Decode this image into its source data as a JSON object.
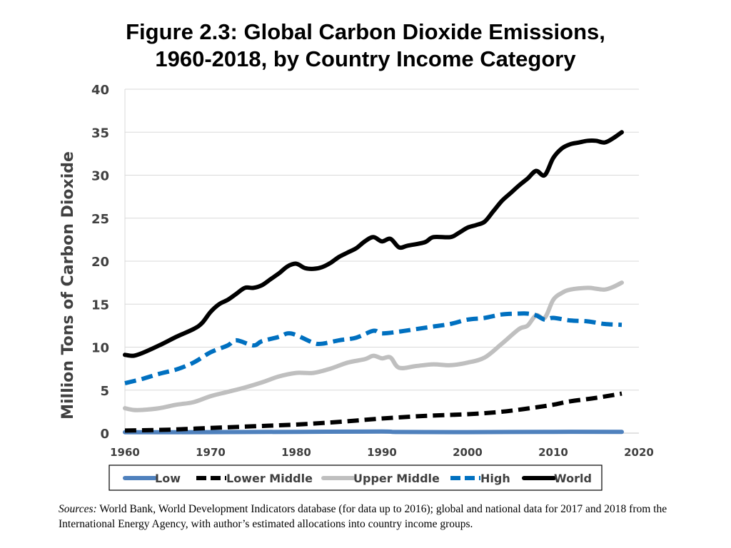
{
  "title_line1": "Figure 2.3: Global Carbon Dioxide Emissions,",
  "title_line2": "1960-2018, by Country Income Category",
  "sources_label": "Sources:",
  "sources_text": "World Bank, World Development Indicators database (for data up to 2016); global and national data for 2017 and 2018 from the International Energy Agency, with author’s estimated allocations into country income groups.",
  "chart_data": {
    "type": "line",
    "title": "Figure 2.3: Global Carbon Dioxide Emissions, 1960-2018, by Country Income Category",
    "xlabel": "",
    "ylabel": "Million Tons of Carbon Dioxide",
    "xlim": [
      1960,
      2020
    ],
    "ylim": [
      0,
      40
    ],
    "xticks": [
      1960,
      1970,
      1980,
      1990,
      2000,
      2010,
      2020
    ],
    "yticks": [
      0,
      5,
      10,
      15,
      20,
      25,
      30,
      35,
      40
    ],
    "grid": true,
    "legend_position": "bottom",
    "series": [
      {
        "name": "Low",
        "color": "#4F81BD",
        "dash": "solid",
        "points": [
          [
            1960,
            0.1
          ],
          [
            1970,
            0.12
          ],
          [
            1980,
            0.15
          ],
          [
            1990,
            0.18
          ],
          [
            1992,
            0.13
          ],
          [
            2000,
            0.12
          ],
          [
            2010,
            0.15
          ],
          [
            2018,
            0.15
          ]
        ]
      },
      {
        "name": "Lower Middle",
        "color": "#000000",
        "dash": "dashed",
        "points": [
          [
            1960,
            0.3
          ],
          [
            1965,
            0.4
          ],
          [
            1970,
            0.6
          ],
          [
            1975,
            0.8
          ],
          [
            1980,
            1.0
          ],
          [
            1985,
            1.3
          ],
          [
            1990,
            1.7
          ],
          [
            1995,
            2.0
          ],
          [
            2000,
            2.2
          ],
          [
            2003,
            2.4
          ],
          [
            2005,
            2.6
          ],
          [
            2008,
            3.0
          ],
          [
            2010,
            3.3
          ],
          [
            2012,
            3.7
          ],
          [
            2015,
            4.1
          ],
          [
            2018,
            4.6
          ]
        ]
      },
      {
        "name": "Upper Middle",
        "color": "#BFBFBF",
        "dash": "solid",
        "points": [
          [
            1960,
            2.9
          ],
          [
            1961,
            2.7
          ],
          [
            1962,
            2.7
          ],
          [
            1964,
            2.9
          ],
          [
            1966,
            3.3
          ],
          [
            1968,
            3.6
          ],
          [
            1970,
            4.3
          ],
          [
            1972,
            4.8
          ],
          [
            1974,
            5.3
          ],
          [
            1976,
            5.9
          ],
          [
            1978,
            6.6
          ],
          [
            1980,
            7.0
          ],
          [
            1982,
            7.0
          ],
          [
            1984,
            7.5
          ],
          [
            1986,
            8.2
          ],
          [
            1988,
            8.6
          ],
          [
            1989,
            9.0
          ],
          [
            1990,
            8.7
          ],
          [
            1991,
            8.8
          ],
          [
            1992,
            7.6
          ],
          [
            1994,
            7.8
          ],
          [
            1996,
            8.0
          ],
          [
            1998,
            7.9
          ],
          [
            2000,
            8.2
          ],
          [
            2002,
            8.8
          ],
          [
            2004,
            10.4
          ],
          [
            2006,
            12.1
          ],
          [
            2007,
            12.5
          ],
          [
            2008,
            13.7
          ],
          [
            2009,
            13.4
          ],
          [
            2010,
            15.5
          ],
          [
            2011,
            16.3
          ],
          [
            2012,
            16.7
          ],
          [
            2014,
            16.9
          ],
          [
            2015,
            16.8
          ],
          [
            2016,
            16.7
          ],
          [
            2017,
            17.0
          ],
          [
            2018,
            17.5
          ]
        ]
      },
      {
        "name": "High",
        "color": "#0070C0",
        "dash": "dashed",
        "points": [
          [
            1960,
            5.8
          ],
          [
            1962,
            6.3
          ],
          [
            1964,
            6.9
          ],
          [
            1966,
            7.4
          ],
          [
            1968,
            8.2
          ],
          [
            1970,
            9.4
          ],
          [
            1972,
            10.2
          ],
          [
            1973,
            10.8
          ],
          [
            1975,
            10.2
          ],
          [
            1976,
            10.7
          ],
          [
            1978,
            11.2
          ],
          [
            1979,
            11.6
          ],
          [
            1980,
            11.4
          ],
          [
            1982,
            10.5
          ],
          [
            1983,
            10.4
          ],
          [
            1985,
            10.8
          ],
          [
            1987,
            11.1
          ],
          [
            1989,
            11.9
          ],
          [
            1990,
            11.6
          ],
          [
            1992,
            11.8
          ],
          [
            1994,
            12.1
          ],
          [
            1996,
            12.4
          ],
          [
            1998,
            12.7
          ],
          [
            2000,
            13.2
          ],
          [
            2002,
            13.4
          ],
          [
            2004,
            13.8
          ],
          [
            2006,
            13.9
          ],
          [
            2007,
            13.9
          ],
          [
            2008,
            13.7
          ],
          [
            2009,
            13.2
          ],
          [
            2010,
            13.4
          ],
          [
            2012,
            13.1
          ],
          [
            2014,
            13.0
          ],
          [
            2016,
            12.7
          ],
          [
            2018,
            12.6
          ]
        ]
      },
      {
        "name": "World",
        "color": "#000000",
        "dash": "solid",
        "points": [
          [
            1960,
            9.1
          ],
          [
            1961,
            9.0
          ],
          [
            1962,
            9.3
          ],
          [
            1964,
            10.2
          ],
          [
            1966,
            11.2
          ],
          [
            1968,
            12.1
          ],
          [
            1969,
            12.8
          ],
          [
            1970,
            14.1
          ],
          [
            1971,
            15.0
          ],
          [
            1972,
            15.5
          ],
          [
            1973,
            16.2
          ],
          [
            1974,
            16.9
          ],
          [
            1975,
            16.9
          ],
          [
            1976,
            17.2
          ],
          [
            1977,
            17.9
          ],
          [
            1978,
            18.6
          ],
          [
            1979,
            19.4
          ],
          [
            1980,
            19.7
          ],
          [
            1981,
            19.2
          ],
          [
            1982,
            19.1
          ],
          [
            1983,
            19.3
          ],
          [
            1984,
            19.8
          ],
          [
            1985,
            20.5
          ],
          [
            1986,
            21.0
          ],
          [
            1987,
            21.5
          ],
          [
            1988,
            22.3
          ],
          [
            1989,
            22.8
          ],
          [
            1990,
            22.3
          ],
          [
            1991,
            22.6
          ],
          [
            1992,
            21.6
          ],
          [
            1993,
            21.8
          ],
          [
            1995,
            22.2
          ],
          [
            1996,
            22.8
          ],
          [
            1998,
            22.8
          ],
          [
            1999,
            23.3
          ],
          [
            2000,
            23.9
          ],
          [
            2001,
            24.2
          ],
          [
            2002,
            24.6
          ],
          [
            2003,
            25.8
          ],
          [
            2004,
            27.0
          ],
          [
            2005,
            27.9
          ],
          [
            2006,
            28.8
          ],
          [
            2007,
            29.6
          ],
          [
            2008,
            30.5
          ],
          [
            2009,
            30.0
          ],
          [
            2010,
            32.0
          ],
          [
            2011,
            33.1
          ],
          [
            2012,
            33.6
          ],
          [
            2013,
            33.8
          ],
          [
            2014,
            34.0
          ],
          [
            2015,
            34.0
          ],
          [
            2016,
            33.8
          ],
          [
            2017,
            34.3
          ],
          [
            2018,
            35.0
          ]
        ]
      }
    ]
  }
}
